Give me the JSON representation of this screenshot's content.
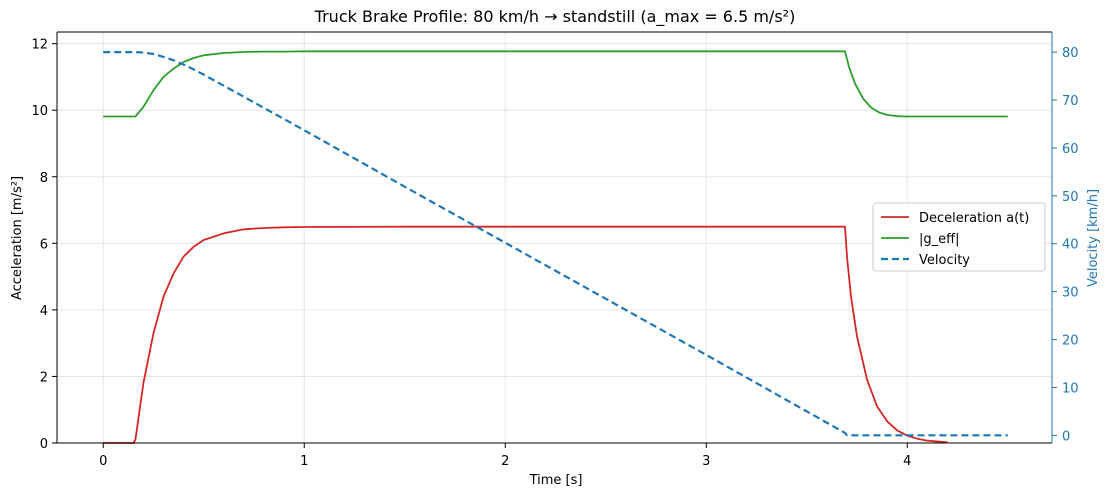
{
  "chart_data": {
    "type": "line",
    "title": "Truck Brake Profile: 80 km/h → standstill  (a_max = 6.5 m/s²)",
    "xlabel": "Time [s]",
    "ylabel": "Acceleration [m/s²]",
    "ylabel_right": "Velocity [km/h]",
    "xlim": [
      -0.23,
      4.72
    ],
    "ylim": [
      0,
      12.35
    ],
    "ylim_right": [
      -1.6,
      84.2
    ],
    "x_ticks": [
      "0",
      "1",
      "2",
      "3",
      "4"
    ],
    "y_ticks": [
      "0",
      "2",
      "4",
      "6",
      "8",
      "10",
      "12"
    ],
    "y_ticks_right": [
      "0",
      "10",
      "20",
      "30",
      "40",
      "50",
      "60",
      "70",
      "80"
    ],
    "grid": true,
    "legend_position": "center-right",
    "series": [
      {
        "name": "Deceleration a(t)",
        "axis": "left",
        "color": "#d62728",
        "style": "solid",
        "x": [
          0,
          0.15,
          0.16,
          0.2,
          0.25,
          0.3,
          0.35,
          0.4,
          0.45,
          0.5,
          0.6,
          0.7,
          0.8,
          0.9,
          1.0,
          1.5,
          2.0,
          2.5,
          3.0,
          3.5,
          3.69,
          3.7,
          3.72,
          3.75,
          3.8,
          3.85,
          3.9,
          3.95,
          4.0,
          4.05,
          4.1,
          4.2
        ],
        "y": [
          0,
          0,
          0.1,
          1.8,
          3.3,
          4.4,
          5.1,
          5.6,
          5.9,
          6.1,
          6.3,
          6.42,
          6.46,
          6.48,
          6.49,
          6.5,
          6.5,
          6.5,
          6.5,
          6.5,
          6.5,
          5.6,
          4.4,
          3.2,
          1.9,
          1.1,
          0.65,
          0.38,
          0.22,
          0.13,
          0.07,
          0.02
        ]
      },
      {
        "name": "|g_eff|",
        "axis": "left",
        "color": "#2ca02c",
        "style": "solid",
        "x": [
          0,
          0.16,
          0.2,
          0.25,
          0.3,
          0.35,
          0.4,
          0.45,
          0.5,
          0.6,
          0.7,
          0.8,
          0.9,
          1.0,
          1.5,
          2.0,
          2.5,
          3.0,
          3.5,
          3.69,
          3.71,
          3.74,
          3.78,
          3.82,
          3.86,
          3.9,
          3.95,
          4.0,
          4.5
        ],
        "y": [
          9.81,
          9.81,
          10.1,
          10.6,
          11.0,
          11.25,
          11.45,
          11.57,
          11.65,
          11.72,
          11.75,
          11.76,
          11.76,
          11.77,
          11.77,
          11.77,
          11.77,
          11.77,
          11.77,
          11.77,
          11.3,
          10.8,
          10.35,
          10.08,
          9.93,
          9.86,
          9.82,
          9.81,
          9.81
        ]
      },
      {
        "name": "Velocity",
        "axis": "right",
        "color": "#1f77b4",
        "style": "dashed",
        "x": [
          0,
          0.16,
          0.2,
          0.25,
          0.3,
          0.35,
          0.4,
          0.45,
          0.5,
          0.6,
          1.0,
          1.5,
          2.0,
          2.5,
          3.0,
          3.5,
          3.69,
          3.7,
          4.5
        ],
        "y": [
          80,
          80,
          79.9,
          79.6,
          79.0,
          78.3,
          77.4,
          76.4,
          75.3,
          73.0,
          63.7,
          51.9,
          40.2,
          28.5,
          16.8,
          5.0,
          0.5,
          0,
          0
        ]
      }
    ]
  }
}
